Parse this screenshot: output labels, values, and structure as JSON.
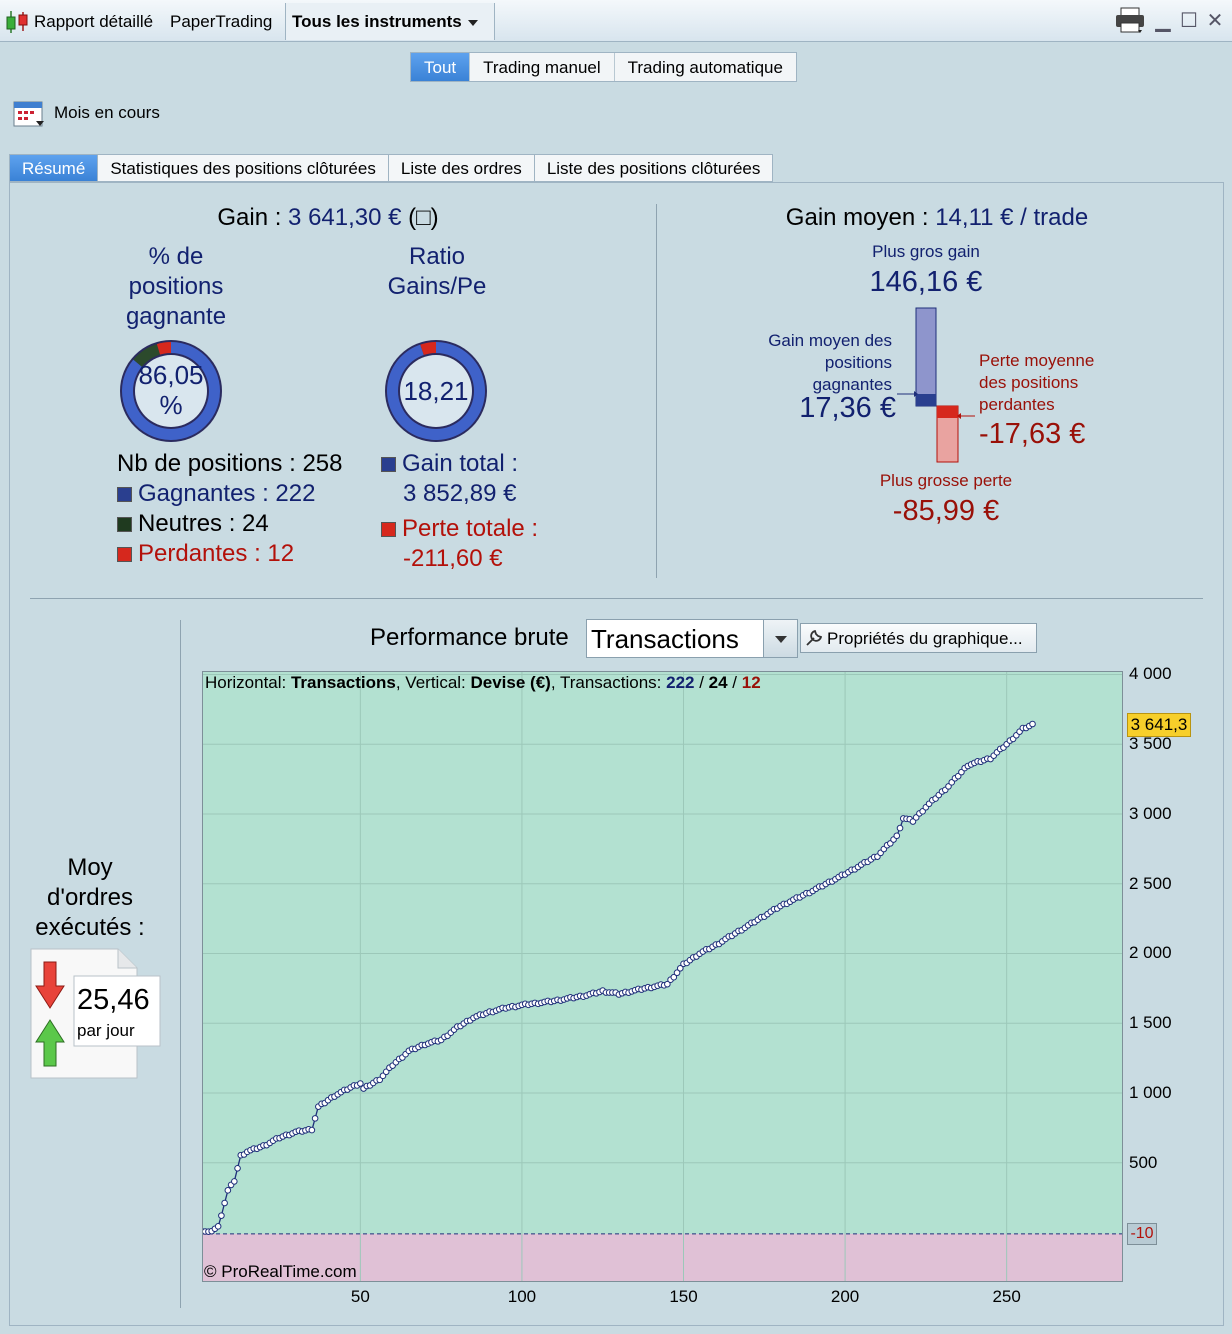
{
  "window": {
    "title_1": "Rapport détaillé",
    "title_2": "PaperTrading",
    "instrument_selector": "Tous les instruments"
  },
  "mode_tabs": [
    {
      "label": "Tout",
      "active": true
    },
    {
      "label": "Trading manuel",
      "active": false
    },
    {
      "label": "Trading automatique",
      "active": false
    }
  ],
  "period": "Mois en cours",
  "report_tabs": [
    {
      "label": "Résumé",
      "active": true
    },
    {
      "label": "Statistiques des positions clôturées",
      "active": false
    },
    {
      "label": "Liste des ordres",
      "active": false
    },
    {
      "label": "Liste des positions clôturées",
      "active": false
    }
  ],
  "summary": {
    "gain_label": "Gain : ",
    "gain_value": "3 641,30 €",
    "gain_suffix": " (□)",
    "pct_label_1": "% de",
    "pct_label_2": "positions",
    "pct_label_3": "gagnante",
    "pct_value_1": "86,05",
    "pct_value_2": "%",
    "ratio_label_1": "Ratio",
    "ratio_label_2": "Gains/Pe",
    "ratio_value": "18,21",
    "nb_positions": "Nb de positions : 258",
    "gagnantes": "Gagnantes : 222",
    "neutres": "Neutres : 24",
    "perdantes": "Perdantes : 12",
    "gain_total_label": "Gain total :",
    "gain_total_value": "3 852,89 €",
    "perte_totale_label": "Perte totale :",
    "perte_totale_value": "-211,60 €",
    "counts": {
      "gagnantes": 222,
      "neutres": 24,
      "perdantes": 12
    },
    "gains_losses_fraction": 0.948
  },
  "average": {
    "gain_moyen_label": "Gain moyen : ",
    "gain_moyen_value": "14,11 € / trade",
    "plus_gros_gain_label": "Plus gros gain",
    "plus_gros_gain_value": "146,16 €",
    "gain_moyen_pos_1": "Gain moyen des",
    "gain_moyen_pos_2": "positions",
    "gain_moyen_pos_3": "gagnantes",
    "gain_moyen_pos_value": "17,36 €",
    "perte_moy_1": "Perte moyenne",
    "perte_moy_2": "des positions",
    "perte_moy_3": "perdantes",
    "perte_moy_value": "-17,63 €",
    "plus_grosse_perte_label": "Plus grosse perte",
    "plus_grosse_perte_value": "-85,99 €"
  },
  "orders": {
    "label_1": "Moy",
    "label_2": "d'ordres",
    "label_3": "exécutés :",
    "value": "25,46",
    "unit": "par jour"
  },
  "chart_header": {
    "title": "Performance brute",
    "dropdown_value": "Transactions",
    "properties_button": "Propriétés du graphique..."
  },
  "chart_info": {
    "h_label": "Horizontal: ",
    "h_value": "Transactions",
    "v_label": ", Vertical: ",
    "v_value": "Devise (€)",
    "t_label": ", Transactions: ",
    "t_win": "222",
    "sep1": " / ",
    "t_neutral": "24",
    "sep2": " / ",
    "t_loss": "12",
    "copyright": "© ProRealTime.com"
  },
  "colors": {
    "win": "#2a3f8f",
    "neutral": "#1f3a1f",
    "loss": "#d6281d",
    "chart_bg_pos": "#b3e1d1",
    "chart_bg_neg": "#e0c1d6",
    "line": "#1f2f7a",
    "last_badge": "#f7cf2a"
  },
  "chart_data": {
    "type": "line",
    "xticks": [
      50,
      100,
      150,
      200,
      250
    ],
    "yticks": [
      500,
      1000,
      1500,
      2000,
      2500,
      3000,
      3500,
      4000
    ],
    "ytick_labels": [
      "500",
      "1 000",
      "1 500",
      "2 000",
      "2 500",
      "3 000",
      "3 500",
      "4 000"
    ],
    "xlim": [
      1,
      286
    ],
    "ylim": [
      -355,
      4025
    ],
    "baseline": -10,
    "baseline_label": "-10",
    "last_value_label": "3 641,3",
    "keypoints": [
      [
        1,
        10
      ],
      [
        3,
        0
      ],
      [
        6,
        40
      ],
      [
        9,
        300
      ],
      [
        11,
        370
      ],
      [
        13,
        550
      ],
      [
        15,
        580
      ],
      [
        20,
        620
      ],
      [
        25,
        680
      ],
      [
        30,
        720
      ],
      [
        35,
        740
      ],
      [
        37,
        900
      ],
      [
        42,
        980
      ],
      [
        47,
        1040
      ],
      [
        50,
        1070
      ],
      [
        51,
        1030
      ],
      [
        56,
        1100
      ],
      [
        60,
        1200
      ],
      [
        65,
        1300
      ],
      [
        70,
        1350
      ],
      [
        75,
        1380
      ],
      [
        80,
        1470
      ],
      [
        85,
        1540
      ],
      [
        90,
        1580
      ],
      [
        95,
        1610
      ],
      [
        100,
        1630
      ],
      [
        110,
        1660
      ],
      [
        120,
        1700
      ],
      [
        125,
        1730
      ],
      [
        130,
        1710
      ],
      [
        138,
        1750
      ],
      [
        145,
        1780
      ],
      [
        150,
        1920
      ],
      [
        155,
        2000
      ],
      [
        160,
        2060
      ],
      [
        170,
        2200
      ],
      [
        180,
        2340
      ],
      [
        190,
        2450
      ],
      [
        200,
        2570
      ],
      [
        210,
        2700
      ],
      [
        216,
        2840
      ],
      [
        218,
        2970
      ],
      [
        221,
        2950
      ],
      [
        225,
        3050
      ],
      [
        232,
        3200
      ],
      [
        238,
        3350
      ],
      [
        245,
        3400
      ],
      [
        250,
        3500
      ],
      [
        255,
        3610
      ],
      [
        258,
        3641
      ]
    ]
  }
}
